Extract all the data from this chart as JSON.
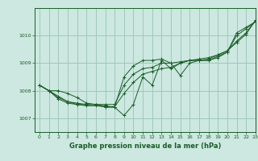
{
  "xlabel": "Graphe pression niveau de la mer (hPa)",
  "background_color": "#cce8e0",
  "line_color": "#1a5c28",
  "grid_color": "#a0c8bc",
  "xlim": [
    -0.5,
    23
  ],
  "ylim": [
    1006.5,
    1011.0
  ],
  "yticks": [
    1007,
    1008,
    1009,
    1010
  ],
  "xticks": [
    0,
    1,
    2,
    3,
    4,
    5,
    6,
    7,
    8,
    9,
    10,
    11,
    12,
    13,
    14,
    15,
    16,
    17,
    18,
    19,
    20,
    21,
    22,
    23
  ],
  "series": [
    [
      1008.2,
      1008.0,
      1007.8,
      1007.6,
      1007.5,
      1007.5,
      1007.5,
      1007.4,
      1007.4,
      1007.1,
      1007.5,
      1008.5,
      1008.2,
      1009.1,
      1008.8,
      1009.0,
      1009.1,
      1009.1,
      1009.1,
      1009.2,
      1009.4,
      1010.1,
      1010.3,
      1010.5
    ],
    [
      1008.2,
      1008.0,
      1007.7,
      1007.55,
      1007.5,
      1007.45,
      1007.45,
      1007.42,
      1007.42,
      1007.9,
      1008.3,
      1008.6,
      1008.7,
      1008.8,
      1008.85,
      1009.0,
      1009.1,
      1009.1,
      1009.1,
      1009.25,
      1009.4,
      1010.0,
      1010.25,
      1010.5
    ],
    [
      1008.2,
      1008.0,
      1007.75,
      1007.6,
      1007.55,
      1007.5,
      1007.5,
      1007.5,
      1007.5,
      1008.2,
      1008.6,
      1008.8,
      1008.85,
      1009.0,
      1009.0,
      1009.05,
      1009.1,
      1009.15,
      1009.2,
      1009.3,
      1009.45,
      1009.8,
      1010.1,
      1010.55
    ],
    [
      1008.2,
      1008.0,
      1008.0,
      1007.9,
      1007.75,
      1007.55,
      1007.5,
      1007.45,
      1007.4,
      1008.5,
      1008.9,
      1009.1,
      1009.1,
      1009.15,
      1009.0,
      1008.55,
      1009.0,
      1009.1,
      1009.15,
      1009.3,
      1009.45,
      1009.75,
      1010.05,
      1010.55
    ]
  ]
}
